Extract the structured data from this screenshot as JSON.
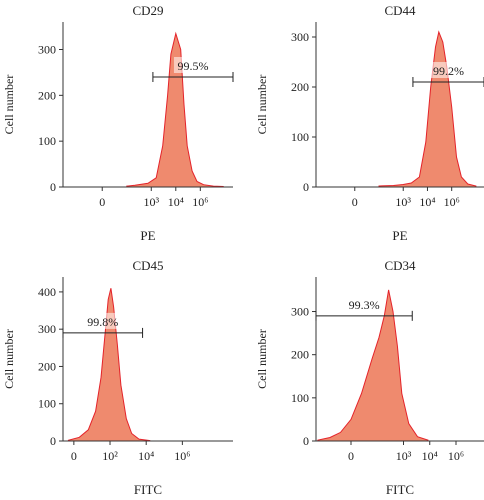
{
  "chart_data": [
    {
      "type": "area",
      "title": "CD29",
      "xlabel": "PE",
      "ylabel": "Cell number",
      "xlim": [
        -2.4,
        8.0
      ],
      "ylim": [
        0,
        360
      ],
      "x_ticks": [
        {
          "value": 0,
          "label": "0"
        },
        {
          "value": 3,
          "label": "10³"
        },
        {
          "value": 4.5,
          "label": "10⁴"
        },
        {
          "value": 6,
          "label": "10⁶"
        }
      ],
      "y_ticks": [
        0,
        100,
        200,
        300
      ],
      "grid": false,
      "series": [
        {
          "x": [
            1.5,
            2.0,
            2.8,
            3.3,
            3.7,
            4.0,
            4.2,
            4.5,
            4.8,
            5.0,
            5.2,
            5.5,
            5.8,
            6.2,
            6.8,
            7.4
          ],
          "y": [
            2,
            4,
            8,
            20,
            90,
            200,
            290,
            335,
            300,
            180,
            90,
            35,
            12,
            5,
            2,
            1
          ]
        }
      ],
      "gate": {
        "x_start": 3.1,
        "x_end": 8.0,
        "y": 240,
        "label": "99.5%"
      }
    },
    {
      "type": "area",
      "title": "CD44",
      "xlabel": "PE",
      "ylabel": "Cell number",
      "xlim": [
        -2.4,
        8.0
      ],
      "ylim": [
        0,
        330
      ],
      "x_ticks": [
        {
          "value": 0,
          "label": "0"
        },
        {
          "value": 3,
          "label": "10³"
        },
        {
          "value": 4.5,
          "label": "10⁴"
        },
        {
          "value": 6,
          "label": "10⁶"
        }
      ],
      "y_ticks": [
        0,
        100,
        200,
        300
      ],
      "grid": false,
      "series": [
        {
          "x": [
            1.5,
            2.4,
            3.0,
            3.5,
            4.0,
            4.4,
            4.7,
            5.0,
            5.2,
            5.45,
            5.7,
            6.0,
            6.3,
            6.6,
            7.0,
            7.5
          ],
          "y": [
            2,
            3,
            5,
            8,
            20,
            90,
            200,
            280,
            310,
            290,
            240,
            160,
            60,
            20,
            6,
            2
          ]
        }
      ],
      "gate": {
        "x_start": 3.6,
        "x_end": 8.0,
        "y": 210,
        "label": "99.2%"
      }
    },
    {
      "type": "area",
      "title": "CD45",
      "xlabel": "FITC",
      "ylabel": "Cell number",
      "xlim": [
        -0.6,
        8.8
      ],
      "ylim": [
        0,
        440
      ],
      "x_ticks": [
        {
          "value": 0,
          "label": "0"
        },
        {
          "value": 2,
          "label": "10²"
        },
        {
          "value": 4,
          "label": "10⁴"
        },
        {
          "value": 6,
          "label": "10⁶"
        }
      ],
      "y_ticks": [
        0,
        100,
        200,
        300,
        400
      ],
      "grid": false,
      "series": [
        {
          "x": [
            -0.3,
            0.3,
            0.8,
            1.2,
            1.5,
            1.75,
            1.9,
            2.05,
            2.2,
            2.4,
            2.6,
            2.9,
            3.2,
            3.6,
            4.2
          ],
          "y": [
            2,
            10,
            30,
            80,
            170,
            300,
            380,
            410,
            360,
            260,
            150,
            60,
            20,
            5,
            1
          ]
        }
      ],
      "gate": {
        "x_start": -0.6,
        "x_end": 3.8,
        "y": 290,
        "label": "99.8%"
      }
    },
    {
      "type": "area",
      "title": "CD34",
      "xlabel": "FITC",
      "ylabel": "Cell number",
      "xlim": [
        -2.0,
        7.6
      ],
      "ylim": [
        0,
        380
      ],
      "x_ticks": [
        {
          "value": 0,
          "label": "0"
        },
        {
          "value": 3,
          "label": "10³"
        },
        {
          "value": 4.5,
          "label": "10⁴"
        },
        {
          "value": 6,
          "label": "10⁶"
        }
      ],
      "y_ticks": [
        0,
        100,
        200,
        300
      ],
      "grid": false,
      "series": [
        {
          "x": [
            -1.9,
            -1.2,
            -0.6,
            0.0,
            0.6,
            1.2,
            1.6,
            1.9,
            2.15,
            2.4,
            2.65,
            2.9,
            3.3,
            3.8,
            4.4
          ],
          "y": [
            2,
            8,
            20,
            50,
            110,
            190,
            240,
            290,
            350,
            300,
            220,
            110,
            40,
            10,
            2
          ]
        }
      ],
      "gate": {
        "x_start": -2.0,
        "x_end": 3.5,
        "y": 290,
        "label": "99.3%"
      }
    }
  ]
}
